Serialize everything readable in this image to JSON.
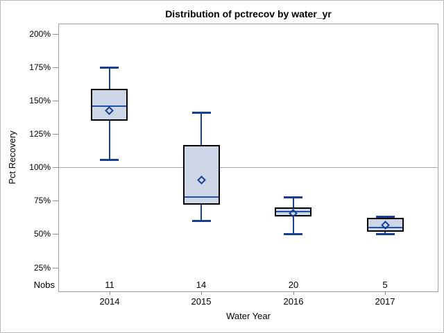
{
  "chart_data": {
    "type": "box",
    "title": "Distribution of pctrecov by water_yr",
    "xlabel": "Water Year",
    "ylabel": "Pct Recovery",
    "categories": [
      "2014",
      "2015",
      "2016",
      "2017"
    ],
    "nobs_label": "Nobs",
    "nobs": [
      11,
      14,
      20,
      5
    ],
    "series": [
      {
        "category": "2014",
        "n": 11,
        "min": 106,
        "q1": 135,
        "median": 146,
        "q3": 159,
        "max": 175,
        "mean": 143
      },
      {
        "category": "2015",
        "n": 14,
        "min": 60,
        "q1": 72,
        "median": 78,
        "q3": 117,
        "max": 141,
        "mean": 91
      },
      {
        "category": "2016",
        "n": 20,
        "min": 50,
        "q1": 63,
        "median": 67,
        "q3": 70,
        "max": 78,
        "mean": 66
      },
      {
        "category": "2017",
        "n": 5,
        "min": 50,
        "q1": 52,
        "median": 55,
        "q3": 62,
        "max": 63,
        "mean": 57
      }
    ],
    "yticks": [
      200,
      175,
      150,
      125,
      100,
      75,
      50,
      25
    ],
    "ytick_suffix": "%",
    "ylim": [
      7,
      208
    ],
    "reference_line": 100,
    "grid": false,
    "legend": "none"
  },
  "colors": {
    "box_fill": "#cdd6e7",
    "box_border": "#000000",
    "whisker": "#173f94",
    "median": "#2150a5",
    "mean_marker": "#173f94",
    "reference_line": "#a5a5a5",
    "frame": "#a0a0a0",
    "tick": "#8c8c8c",
    "outer_border": "#b9b9b9",
    "text": "#000000",
    "background": "#ffffff"
  }
}
